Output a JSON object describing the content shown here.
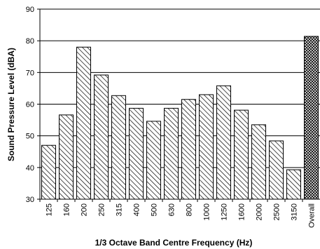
{
  "chart_data": {
    "type": "bar",
    "title": "",
    "xlabel": "1/3 Octave Band Centre Frequency (Hz)",
    "ylabel": "Sound Pressure Level (dBA)",
    "ylim": [
      30,
      90
    ],
    "yticks": [
      "30",
      "40",
      "50",
      "60",
      "70",
      "80",
      "90"
    ],
    "grid": true,
    "categories": [
      "125",
      "160",
      "200",
      "250",
      "315",
      "400",
      "500",
      "630",
      "800",
      "1000",
      "1250",
      "1600",
      "2000",
      "2500",
      "3150",
      "Overall"
    ],
    "values": [
      47.0,
      56.6,
      78.0,
      69.2,
      62.7,
      58.7,
      54.6,
      58.7,
      61.5,
      63.0,
      65.8,
      58.1,
      53.5,
      48.4,
      39.3,
      81.4
    ],
    "patterns": [
      "diagonal-hatch",
      "diagonal-hatch",
      "diagonal-hatch",
      "diagonal-hatch",
      "diagonal-hatch",
      "diagonal-hatch",
      "diagonal-hatch",
      "diagonal-hatch",
      "diagonal-hatch",
      "diagonal-hatch",
      "diagonal-hatch",
      "diagonal-hatch",
      "diagonal-hatch",
      "diagonal-hatch",
      "diagonal-hatch",
      "cross-hatch"
    ],
    "colors": {
      "bar_stroke": "#000000",
      "hatch": "#000000",
      "background": "#ffffff",
      "gridline": "#000000"
    }
  }
}
